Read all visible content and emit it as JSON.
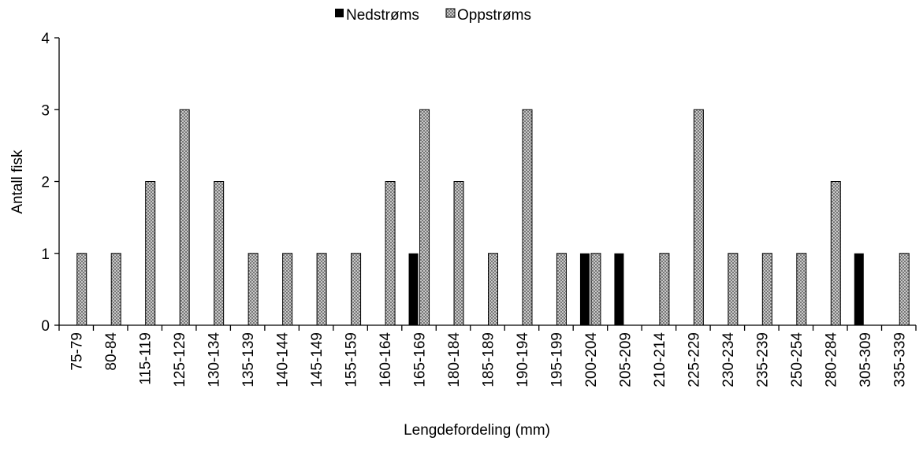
{
  "chart_data": {
    "type": "bar",
    "x_label": "Lengdefordeling (mm)",
    "y_label": "Antall fisk",
    "categories": [
      "75-79",
      "80-84",
      "115-119",
      "125-129",
      "130-134",
      "135-139",
      "140-144",
      "145-149",
      "155-159",
      "160-164",
      "165-169",
      "180-184",
      "185-189",
      "190-194",
      "195-199",
      "200-204",
      "205-209",
      "210-214",
      "225-229",
      "230-234",
      "235-239",
      "250-254",
      "280-284",
      "305-309",
      "335-339"
    ],
    "series": [
      {
        "name": "Nedstrøms",
        "color": "#000000",
        "values": [
          0,
          0,
          0,
          0,
          0,
          0,
          0,
          0,
          0,
          0,
          1,
          0,
          0,
          0,
          0,
          1,
          1,
          0,
          0,
          0,
          0,
          0,
          0,
          1,
          0
        ]
      },
      {
        "name": "Oppstrøms",
        "color": "#d9d9d9",
        "values": [
          1,
          1,
          2,
          3,
          2,
          1,
          1,
          1,
          1,
          2,
          3,
          2,
          1,
          3,
          1,
          1,
          0,
          1,
          3,
          1,
          1,
          1,
          2,
          0,
          1
        ]
      }
    ],
    "ylim": [
      0,
      4
    ],
    "yticks": [
      0,
      1,
      2,
      3,
      4
    ],
    "grid": false,
    "legend": "top"
  }
}
